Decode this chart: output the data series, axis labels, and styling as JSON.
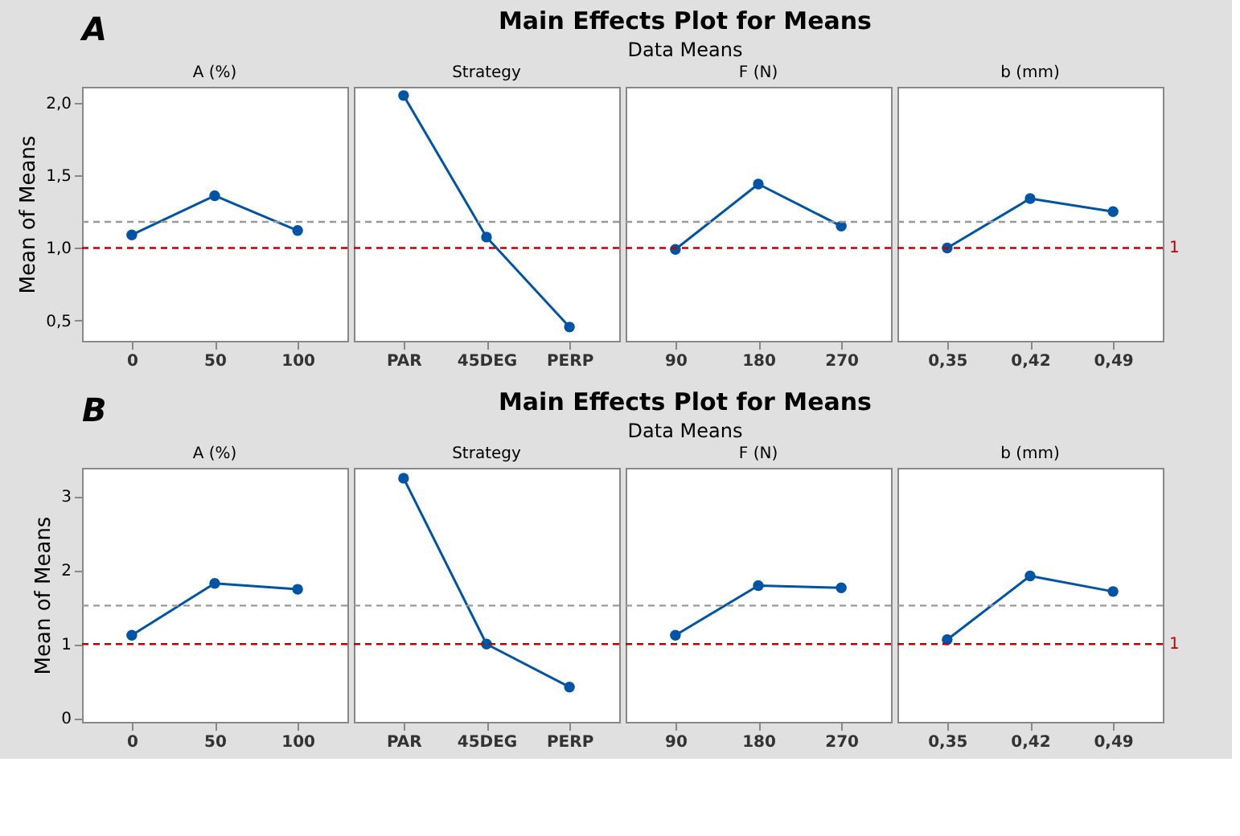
{
  "chart_data": [
    {
      "type": "line",
      "title": "A (%)",
      "ylabel": "Mean of Means",
      "annotations": [
        "A",
        "Main Effects Plot for Means",
        "Data Means"
      ],
      "categories": [
        "0",
        "50",
        "100"
      ],
      "values": [
        1.09,
        1.36,
        1.12
      ],
      "color": "#0054a6",
      "marker": "circle",
      "ylim": [
        0.36,
        2.11
      ],
      "yticks": [
        {
          "value": 0.5,
          "label": "0,5"
        },
        {
          "value": 1.0,
          "label": "1,0"
        },
        {
          "value": 1.5,
          "label": "1,5"
        },
        {
          "value": 2.0,
          "label": "2,0"
        }
      ],
      "grid": false,
      "ref_lines": [
        {
          "axis": "y",
          "value": 1.18,
          "color": "#999999",
          "line_style": "dashed"
        },
        {
          "axis": "y",
          "value": 1,
          "color": "#c00000",
          "line_style": "dashed"
        }
      ]
    },
    {
      "type": "line",
      "title": "Strategy",
      "categories": [
        "PAR",
        "45DEG",
        "PERP"
      ],
      "values": [
        2.05,
        1.075,
        0.455
      ],
      "color": "#0054a6",
      "marker": "circle",
      "ylim": [
        0.36,
        2.11
      ],
      "tick_labels": "x",
      "grid": false,
      "ref_lines": [
        {
          "axis": "y",
          "value": 1.18,
          "color": "#999999",
          "line_style": "dashed"
        },
        {
          "axis": "y",
          "value": 1,
          "color": "#c00000",
          "line_style": "dashed"
        }
      ]
    },
    {
      "type": "line",
      "title": "F (N)",
      "categories": [
        "90",
        "180",
        "270"
      ],
      "values": [
        0.99,
        1.44,
        1.15
      ],
      "color": "#0054a6",
      "marker": "circle",
      "ylim": [
        0.36,
        2.11
      ],
      "tick_labels": "x",
      "grid": false,
      "ref_lines": [
        {
          "axis": "y",
          "value": 1.18,
          "color": "#999999",
          "line_style": "dashed"
        },
        {
          "axis": "y",
          "value": 1,
          "color": "#c00000",
          "line_style": "dashed"
        }
      ]
    },
    {
      "type": "line",
      "title": "b (mm)",
      "categories": [
        "0,35",
        "0,42",
        "0,49"
      ],
      "values": [
        1.0,
        1.34,
        1.25
      ],
      "color": "#0054a6",
      "marker": "circle",
      "ylim": [
        0.36,
        2.11
      ],
      "tick_labels": "x",
      "grid": false,
      "ref_lines": [
        {
          "axis": "y",
          "value": 1.18,
          "color": "#999999",
          "line_style": "dashed"
        },
        {
          "axis": "y",
          "value": 1,
          "color": "#c00000",
          "line_style": "dashed",
          "label": "1"
        }
      ]
    },
    {
      "type": "line",
      "title": "A (%)",
      "ylabel": "Mean of Means",
      "annotations": [
        "B",
        "Main Effects Plot for Means",
        "Data Means"
      ],
      "categories": [
        "0",
        "50",
        "100"
      ],
      "values": [
        1.12,
        1.82,
        1.74
      ],
      "color": "#0054a6",
      "marker": "circle",
      "ylim": [
        -0.05,
        3.38
      ],
      "yticks": [
        0,
        1,
        2,
        3
      ],
      "grid": false,
      "ref_lines": [
        {
          "axis": "y",
          "value": 1.52,
          "color": "#999999",
          "line_style": "dashed"
        },
        {
          "axis": "y",
          "value": 1,
          "color": "#c00000",
          "line_style": "dashed"
        }
      ]
    },
    {
      "type": "line",
      "title": "Strategy",
      "categories": [
        "PAR",
        "45DEG",
        "PERP"
      ],
      "values": [
        3.24,
        1.0,
        0.42
      ],
      "color": "#0054a6",
      "marker": "circle",
      "ylim": [
        -0.05,
        3.38
      ],
      "tick_labels": "x",
      "grid": false,
      "ref_lines": [
        {
          "axis": "y",
          "value": 1.52,
          "color": "#999999",
          "line_style": "dashed"
        },
        {
          "axis": "y",
          "value": 1,
          "color": "#c00000",
          "line_style": "dashed"
        }
      ]
    },
    {
      "type": "line",
      "title": "F (N)",
      "categories": [
        "90",
        "180",
        "270"
      ],
      "values": [
        1.12,
        1.79,
        1.76
      ],
      "color": "#0054a6",
      "marker": "circle",
      "ylim": [
        -0.05,
        3.38
      ],
      "tick_labels": "x",
      "grid": false,
      "ref_lines": [
        {
          "axis": "y",
          "value": 1.52,
          "color": "#999999",
          "line_style": "dashed"
        },
        {
          "axis": "y",
          "value": 1,
          "color": "#c00000",
          "line_style": "dashed"
        }
      ]
    },
    {
      "type": "line",
      "title": "b (mm)",
      "categories": [
        "0,35",
        "0,42",
        "0,49"
      ],
      "values": [
        1.06,
        1.92,
        1.71
      ],
      "color": "#0054a6",
      "marker": "circle",
      "ylim": [
        -0.05,
        3.38
      ],
      "tick_labels": "x",
      "grid": false,
      "ref_lines": [
        {
          "axis": "y",
          "value": 1.52,
          "color": "#999999",
          "line_style": "dashed"
        },
        {
          "axis": "y",
          "value": 1,
          "color": "#c00000",
          "line_style": "dashed",
          "label": "1"
        }
      ]
    }
  ]
}
